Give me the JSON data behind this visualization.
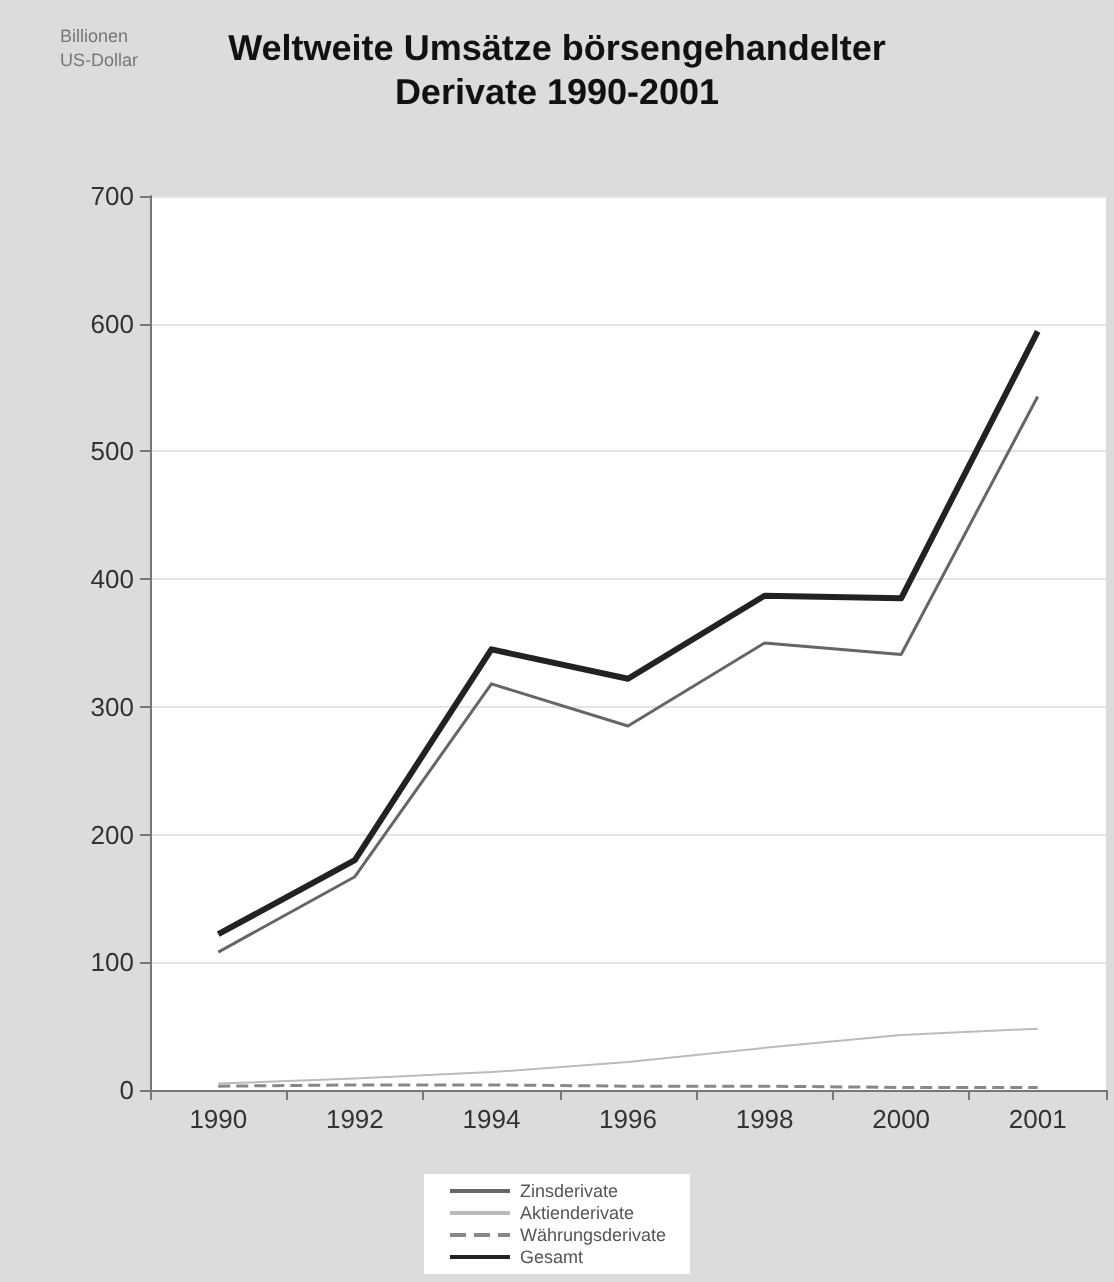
{
  "chart_data": {
    "type": "line",
    "title": "Weltweite Umsätze börsengehandelter\nDerivate 1990-2001",
    "annotations": [
      "Billionen\nUS-Dollar"
    ],
    "categories": [
      "1990",
      "1992",
      "1994",
      "1996",
      "1998",
      "2000",
      "2001"
    ],
    "series": [
      {
        "name": "Zinsderivate",
        "color": "#666666",
        "values": [
          108,
          167,
          318,
          285,
          350,
          341,
          543
        ]
      },
      {
        "name": "Aktienderivate",
        "color": "#bbbbbb",
        "values": [
          5,
          9,
          14,
          22,
          33,
          43,
          48
        ]
      },
      {
        "name": "Währungsderivate",
        "color": "#888888",
        "line_style": "dashed",
        "values": [
          3,
          4,
          4,
          3,
          3,
          2,
          2
        ]
      },
      {
        "name": "Gesamt",
        "color": "#222222",
        "values": [
          122,
          180,
          345,
          322,
          387,
          385,
          594
        ]
      }
    ],
    "ylim": [
      0,
      700
    ],
    "yticks": [
      0,
      100,
      200,
      300,
      400,
      500,
      600,
      700
    ],
    "grid": "y",
    "legend": "bottom",
    "marker": "none",
    "line_style": "solid"
  }
}
